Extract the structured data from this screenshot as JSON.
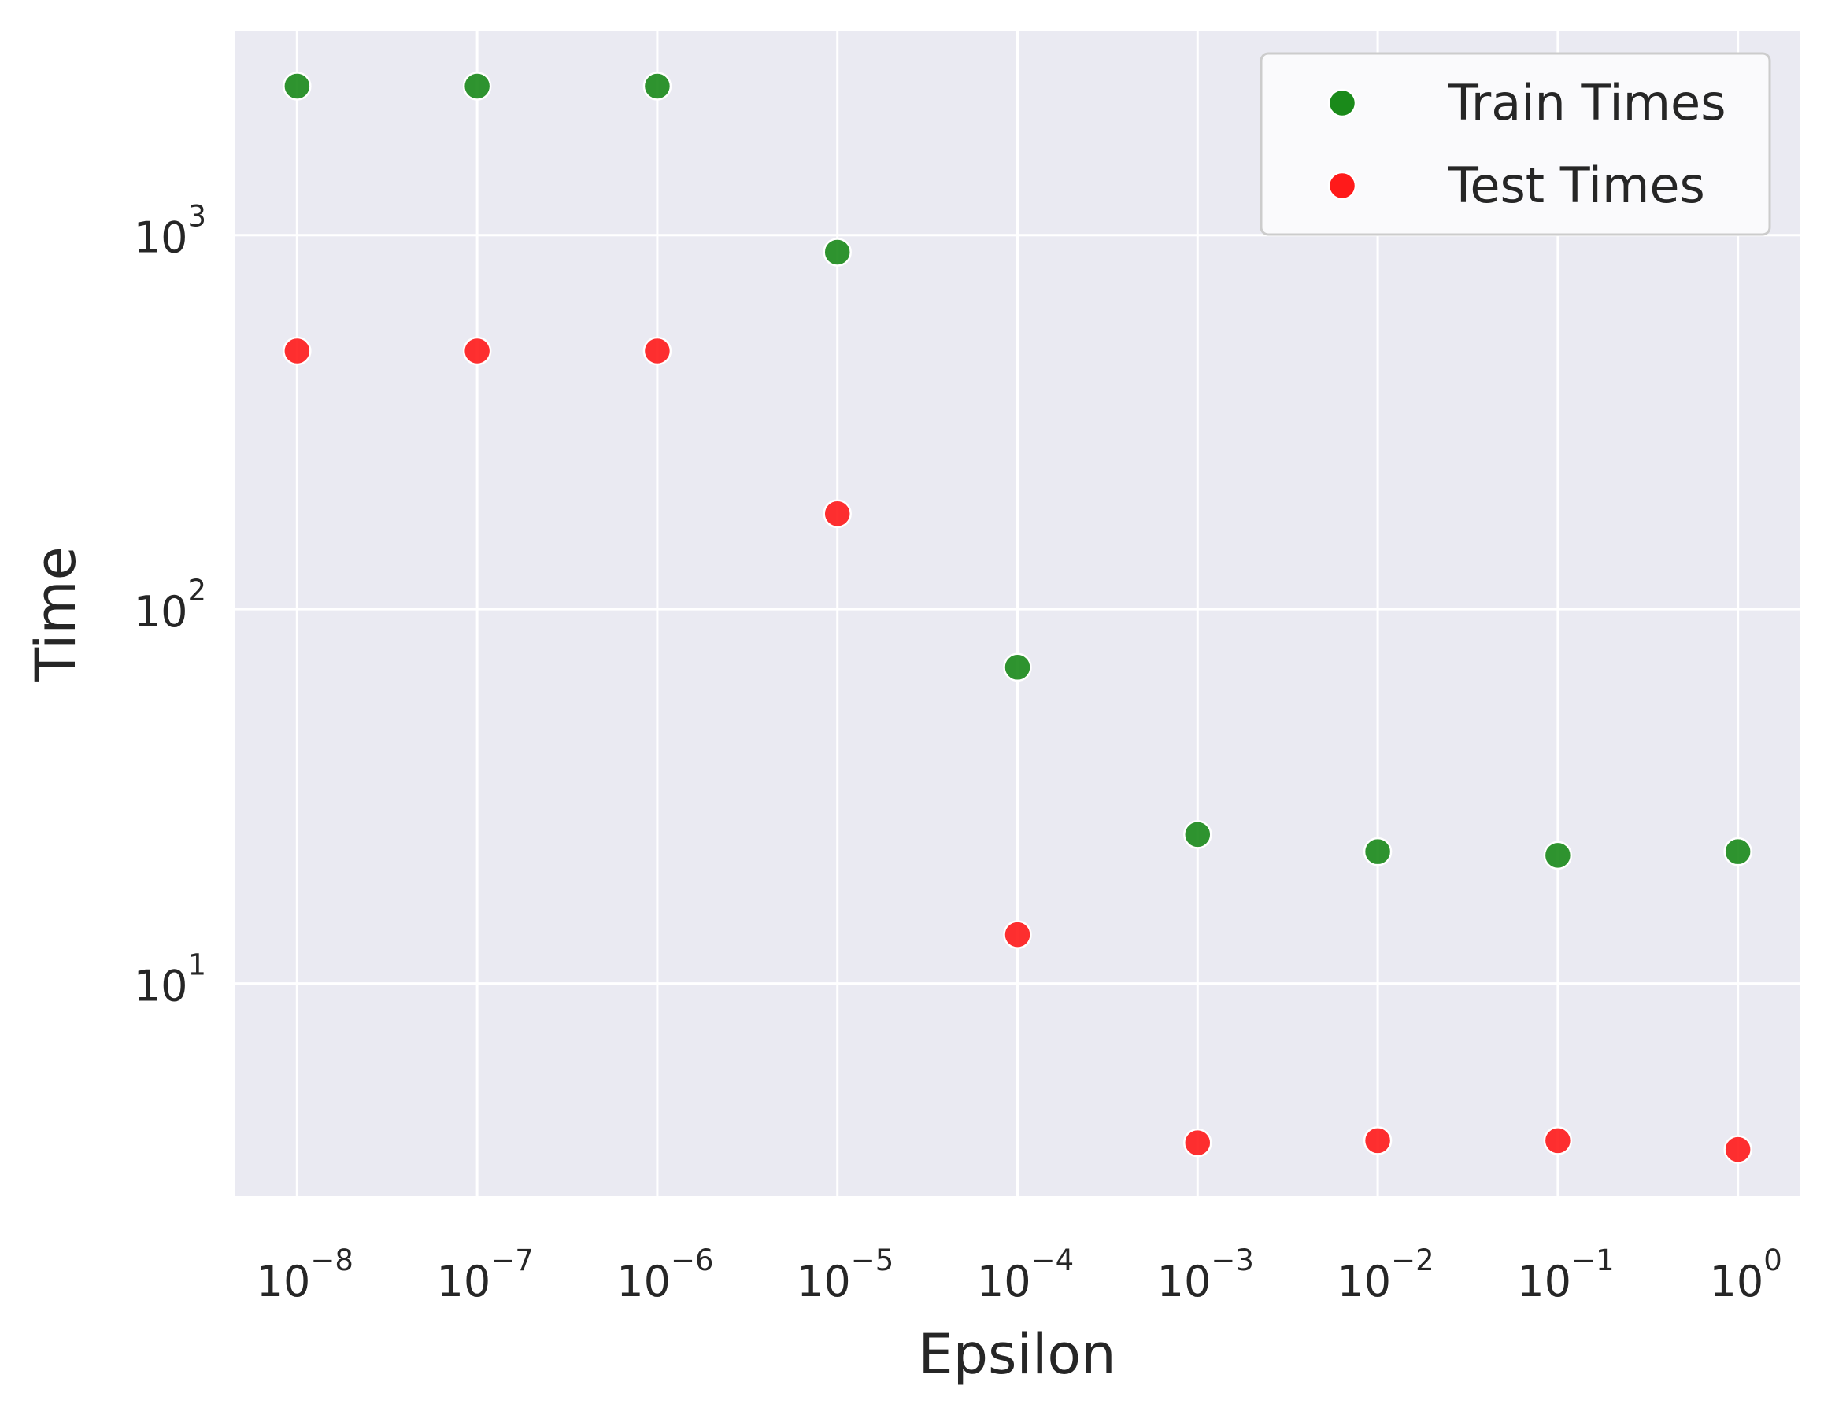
{
  "chart_data": {
    "type": "scatter",
    "title": "",
    "xlabel": "Epsilon",
    "ylabel": "Time",
    "x_scale": "log",
    "y_scale": "log",
    "xlim": [
      4.5e-09,
      2.2
    ],
    "ylim": [
      2.7,
      3500
    ],
    "grid": true,
    "legend_position": "top-right",
    "background_color": "#eaeaf2",
    "x": [
      1e-08,
      1e-07,
      1e-06,
      1e-05,
      0.0001,
      0.001,
      0.01,
      0.1,
      1
    ],
    "x_tick_labels": [
      {
        "base": "10",
        "exp": "−8"
      },
      {
        "base": "10",
        "exp": "−7"
      },
      {
        "base": "10",
        "exp": "−6"
      },
      {
        "base": "10",
        "exp": "−5"
      },
      {
        "base": "10",
        "exp": "−4"
      },
      {
        "base": "10",
        "exp": "−3"
      },
      {
        "base": "10",
        "exp": "−2"
      },
      {
        "base": "10",
        "exp": "−1"
      },
      {
        "base": "10",
        "exp": "0"
      }
    ],
    "y_ticks": [
      10,
      100,
      1000
    ],
    "y_tick_labels": [
      {
        "base": "10",
        "exp": "1"
      },
      {
        "base": "10",
        "exp": "2"
      },
      {
        "base": "10",
        "exp": "3"
      }
    ],
    "series": [
      {
        "name": "Train Times",
        "color": "#1a8a1a",
        "values": [
          2500,
          2500,
          2500,
          900,
          70,
          25,
          22.5,
          22,
          22.5
        ]
      },
      {
        "name": "Test Times",
        "color": "#ff1a1a",
        "values": [
          490,
          490,
          490,
          180,
          13.5,
          3.75,
          3.8,
          3.8,
          3.6
        ]
      }
    ]
  }
}
